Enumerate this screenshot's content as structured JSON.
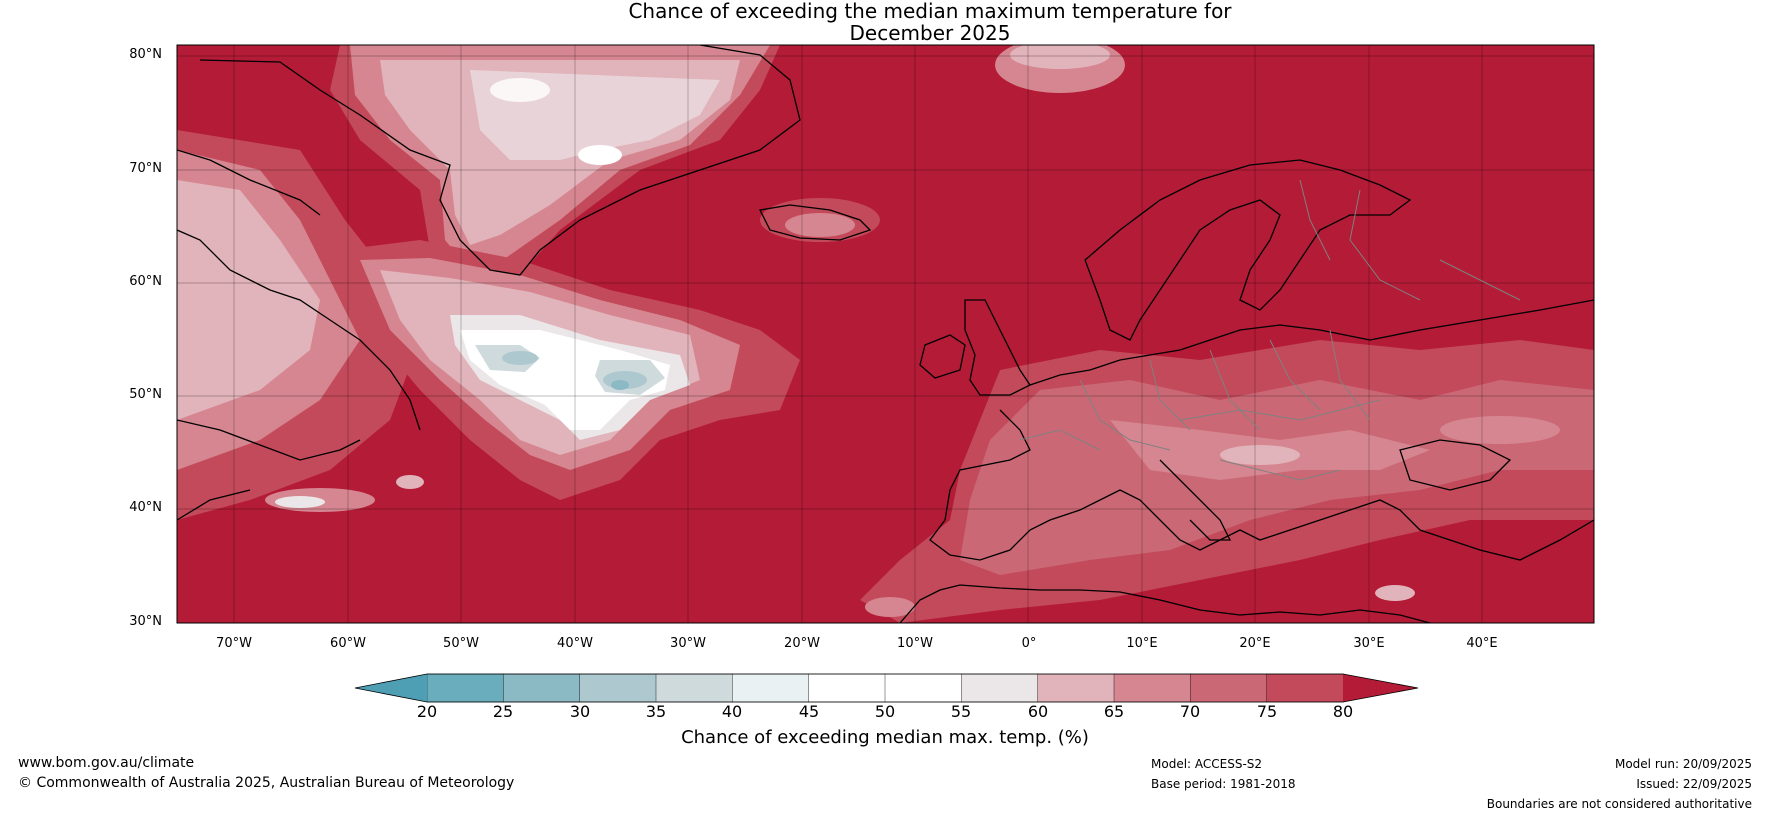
{
  "title": {
    "line1": "Chance of exceeding the median maximum temperature for",
    "line2": "December 2025"
  },
  "map": {
    "lat_ticks": [
      "80°N",
      "70°N",
      "60°N",
      "50°N",
      "40°N",
      "30°N"
    ],
    "lon_ticks": [
      "70°W",
      "60°W",
      "50°W",
      "40°W",
      "30°W",
      "20°W",
      "10°W",
      "0°",
      "10°E",
      "20°E",
      "30°E",
      "40°E"
    ],
    "background_color": "#b31b36",
    "coast_color": "#000000",
    "border_color": "#808080"
  },
  "colorbar": {
    "labels": [
      "20",
      "25",
      "30",
      "35",
      "40",
      "45",
      "50",
      "55",
      "60",
      "65",
      "70",
      "75",
      "80"
    ],
    "colors": [
      "#4f9fb4",
      "#6aadbd",
      "#8bb9c4",
      "#aec8cf",
      "#cfdadd",
      "#e9f1f2",
      "#ffffff",
      "#ffffff",
      "#ebe7e8",
      "#e1b3ba",
      "#d68690",
      "#ca6975",
      "#c34a5a",
      "#b31b36"
    ],
    "title": "Chance of exceeding median max. temp. (%)"
  },
  "footer": {
    "website": "www.bom.gov.au/climate",
    "copyright": "© Commonwealth of Australia 2025, Australian Bureau of Meteorology",
    "model": "Model: ACCESS-S2",
    "base_period": "Base period: 1981-2018",
    "model_run": "Model run: 20/09/2025",
    "issued": "Issued: 22/09/2025",
    "disclaimer": "Boundaries are not considered authoritative"
  }
}
